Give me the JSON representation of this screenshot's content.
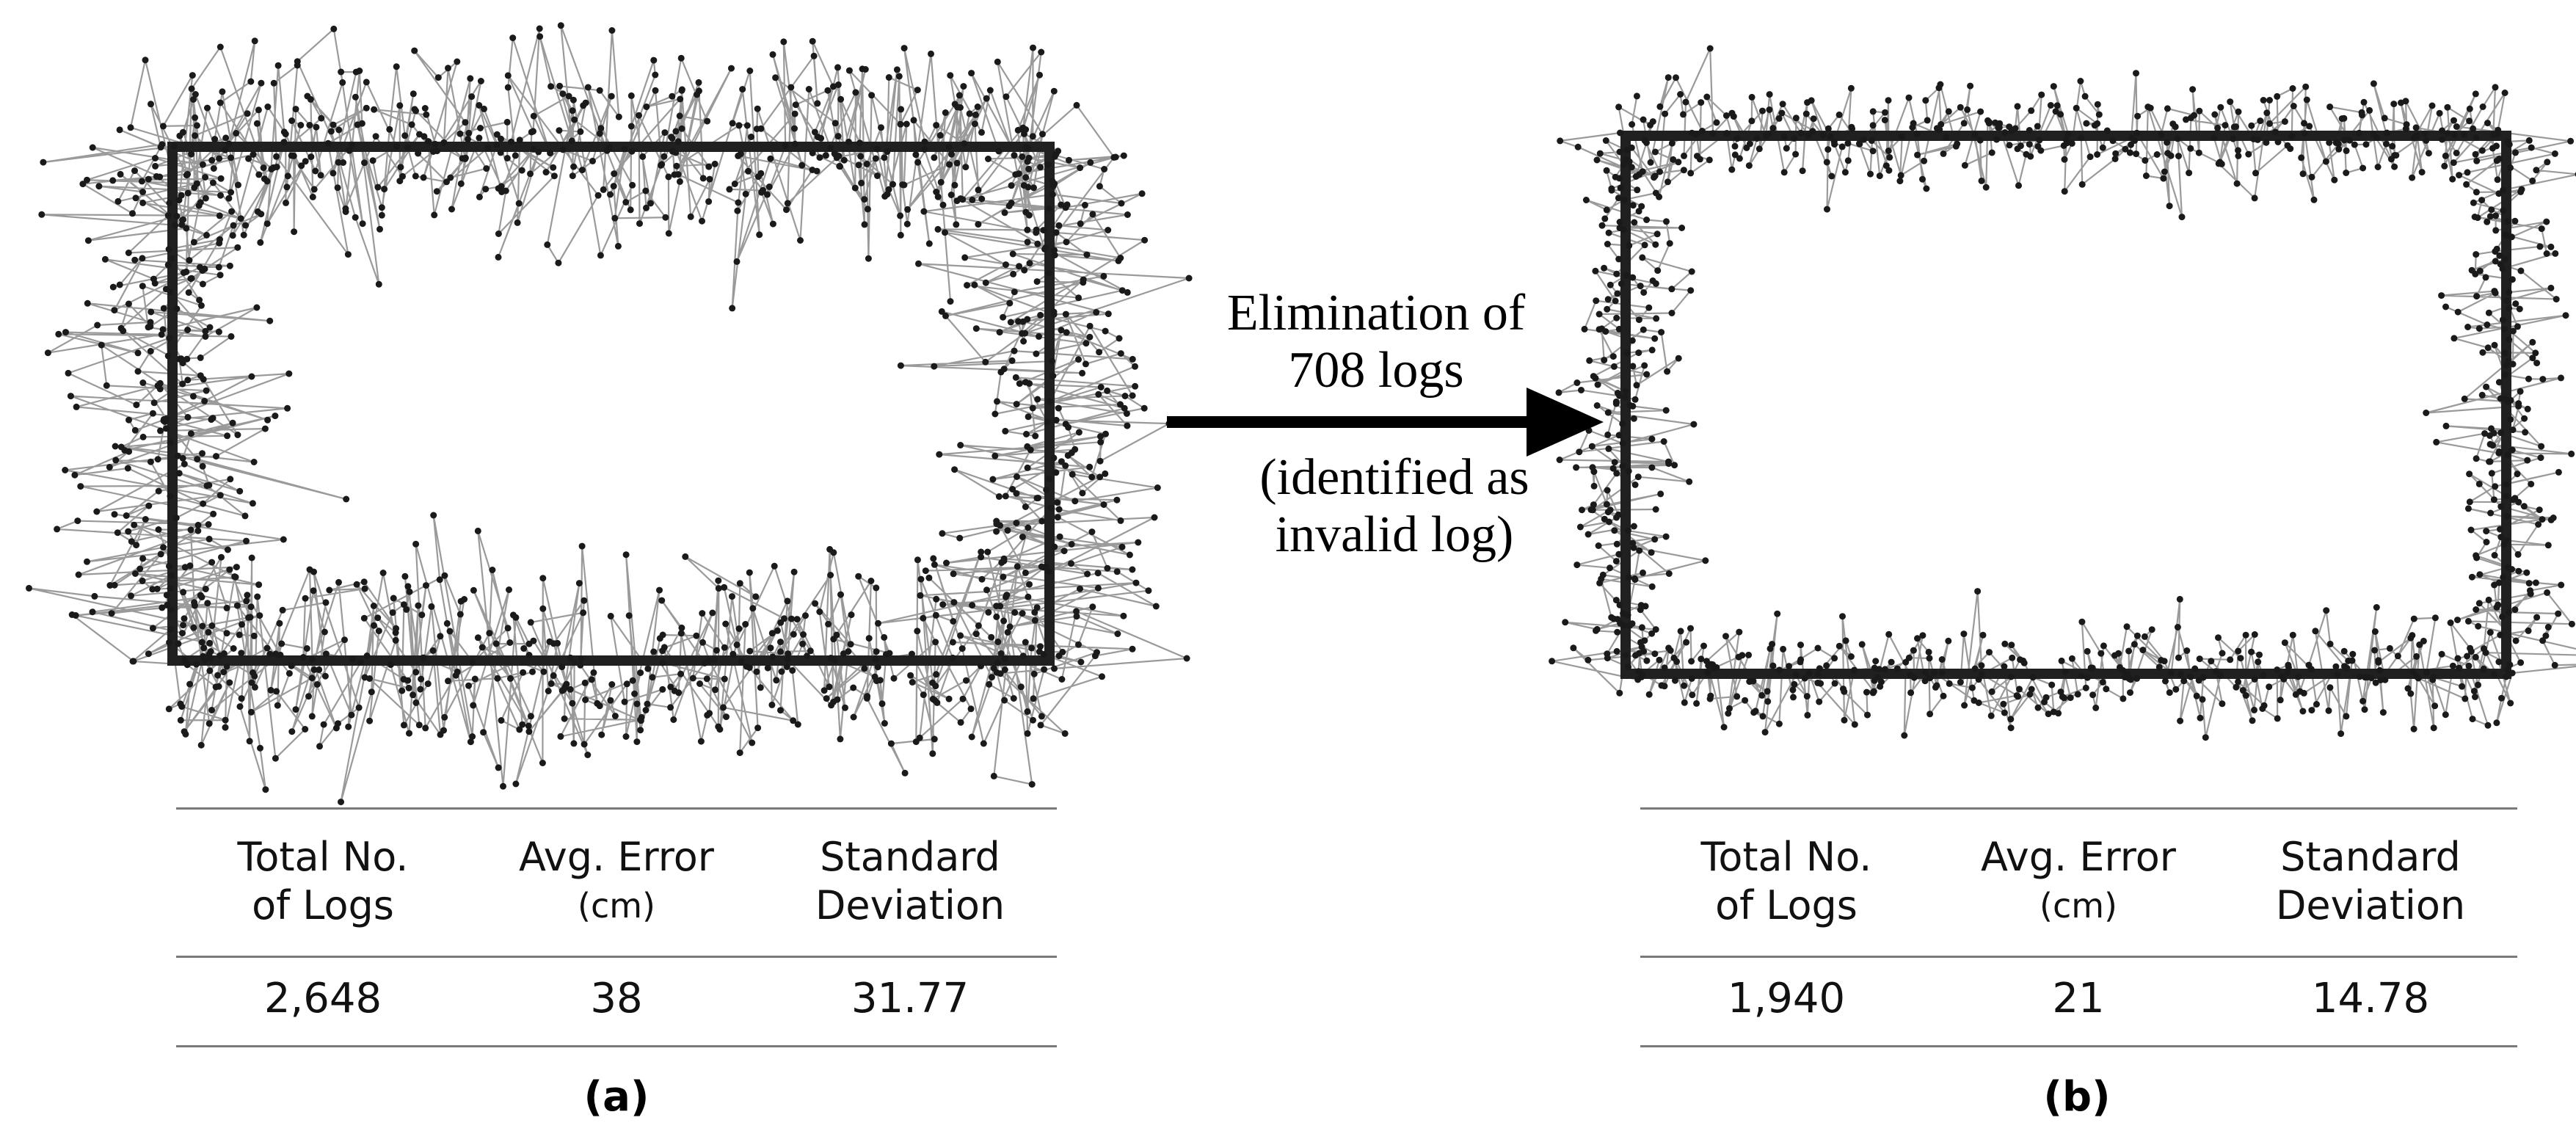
{
  "panels": [
    {
      "caption": "(a)",
      "table": {
        "headers": [
          {
            "line1": "Total No.",
            "line2": "of Logs"
          },
          {
            "line1": "Avg. Error",
            "line2": "(cm)"
          },
          {
            "line1": "Standard",
            "line2": "Deviation"
          }
        ],
        "values": [
          "2,648",
          "38",
          "31.77"
        ]
      }
    },
    {
      "caption": "(b)",
      "table": {
        "headers": [
          {
            "line1": "Total No.",
            "line2": "of Logs"
          },
          {
            "line1": "Avg. Error",
            "line2": "(cm)"
          },
          {
            "line1": "Standard",
            "line2": "Deviation"
          }
        ],
        "values": [
          "1,940",
          "21",
          "14.78"
        ]
      }
    }
  ],
  "arrow": {
    "line1": "Elimination of",
    "line2": "708 logs",
    "line3": "(identified as",
    "line4": "invalid log)"
  },
  "colors": {
    "trace_line": "#9a9a9a",
    "trace_point": "#1a1a1a",
    "rule": "#7a7a7a"
  }
}
